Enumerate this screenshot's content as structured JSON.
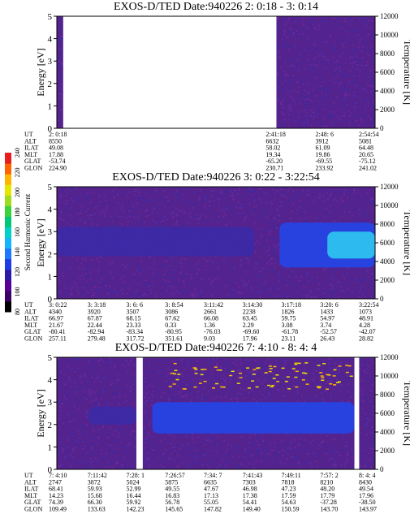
{
  "colorbar": {
    "label": "Second Harmonic Current",
    "ticks": [
      "80",
      "100",
      "120",
      "140",
      "160",
      "180",
      "200",
      "220",
      "240"
    ],
    "colors": [
      "#000000",
      "#3c0064",
      "#5a0096",
      "#2a1aa8",
      "#1e3ce6",
      "#1e78ff",
      "#14b4ff",
      "#00d2c8",
      "#00c878",
      "#3cd23c",
      "#a0dc1e",
      "#e6e600",
      "#ffb400",
      "#ff6400",
      "#e61e1e"
    ]
  },
  "colors": {
    "background_purple": "#54238e",
    "background_blue": "#3b2aa6",
    "band_blue": "#2346e8",
    "bright_cyan": "#2ec8f0",
    "gap_white": "#ffffff"
  },
  "chart_data": [
    {
      "type": "heatmap",
      "title": "EXOS-D/TED   Date:940226  2: 0:18 - 3: 0:14",
      "ylabel": "Energy [eV]",
      "ylabel_right": "Temperature [K]",
      "ylim": [
        0,
        5
      ],
      "ylim_right": [
        0,
        12000
      ],
      "yticks": [
        "0",
        "1",
        "2",
        "3",
        "4",
        "5"
      ],
      "yticks_right": [
        "0",
        "2000",
        "4000",
        "6000",
        "8000",
        "10000",
        "12000"
      ],
      "data_segments": [
        {
          "from_frac": 0.0,
          "to_frac": 0.02,
          "level": "low"
        },
        {
          "from_frac": 0.69,
          "to_frac": 1.0,
          "level": "low"
        }
      ],
      "features": [],
      "table": {
        "row_labels": [
          "UT",
          "ALT",
          "ILAT",
          "MLT",
          "GLAT",
          "GLON"
        ],
        "columns": [
          {
            "values": [
              "2: 0:18",
              "8550",
              "49.08",
              "17.88",
              "-53.74",
              "224.90"
            ]
          },
          {
            "values": [
              "2:41:18",
              "6632",
              "58.02",
              "19.34",
              "-65.20",
              "230.71"
            ]
          },
          {
            "values": [
              "2:48: 6",
              "3912",
              "61.09",
              "19.86",
              "-69.55",
              "233.92"
            ]
          },
          {
            "values": [
              "2:54:54",
              "5081",
              "64.48",
              "20.65",
              "-75.12",
              "241.02"
            ]
          }
        ]
      }
    },
    {
      "type": "heatmap",
      "title": "EXOS-D/TED   Date:940226  3: 0:22 - 3:22:54",
      "ylabel": "Energy [eV]",
      "ylabel_right": "Temperature [K]",
      "ylim": [
        0,
        5
      ],
      "ylim_right": [
        0,
        12000
      ],
      "yticks": [
        "0",
        "1",
        "2",
        "3",
        "4",
        "5"
      ],
      "yticks_right": [
        "0",
        "2000",
        "4000",
        "6000",
        "8000",
        "10000",
        "12000"
      ],
      "data_segments": [
        {
          "from_frac": 0.0,
          "to_frac": 1.0,
          "level": "low"
        }
      ],
      "features": [
        {
          "kind": "band",
          "from_frac": 0.0,
          "to_frac": 0.62,
          "e_from": 1.9,
          "e_to": 3.2,
          "level": "mid"
        },
        {
          "kind": "patch",
          "from_frac": 0.7,
          "to_frac": 1.0,
          "e_from": 1.4,
          "e_to": 3.4,
          "level": "high"
        },
        {
          "kind": "patch",
          "from_frac": 0.85,
          "to_frac": 1.0,
          "e_from": 1.8,
          "e_to": 3.0,
          "level": "bright"
        }
      ],
      "table": {
        "row_labels": [
          "UT",
          "ALT",
          "ILAT",
          "MLT",
          "GLAT",
          "GLON"
        ],
        "columns": [
          {
            "values": [
              "3: 0:22",
              "4340",
              "66.97",
              "21.67",
              "-80.41",
              "257.11"
            ]
          },
          {
            "values": [
              "3: 3:18",
              "3920",
              "67.87",
              "22.44",
              "-82.94",
              "279.48"
            ]
          },
          {
            "values": [
              "3: 6: 6",
              "3507",
              "68.15",
              "23.33",
              "-83.34",
              "317.72"
            ]
          },
          {
            "values": [
              "3: 8:54",
              "3086",
              "67.62",
              "0.33",
              "-80.95",
              "351.61"
            ]
          },
          {
            "values": [
              "3:11:42",
              "2661",
              "66.08",
              "1.36",
              "-76.03",
              "9.03"
            ]
          },
          {
            "values": [
              "3:14:30",
              "2238",
              "63.45",
              "2.29",
              "-69.60",
              "17.96"
            ]
          },
          {
            "values": [
              "3:17:18",
              "1826",
              "59.75",
              "3.08",
              "-61.78",
              "23.11"
            ]
          },
          {
            "values": [
              "3:20: 6",
              "1433",
              "54.97",
              "3.74",
              "-52.57",
              "26.43"
            ]
          },
          {
            "values": [
              "3:22:54",
              "1073",
              "48.91",
              "4.28",
              "-42.07",
              "28.82"
            ]
          }
        ]
      }
    },
    {
      "type": "heatmap",
      "title": "EXOS-D/TED   Date:940226  7: 4:10 - 8: 4: 4",
      "ylabel": "Energy [eV]",
      "ylabel_right": "Temperature [K]",
      "ylim": [
        0,
        5
      ],
      "ylim_right": [
        0,
        12000
      ],
      "yticks": [
        "0",
        "1",
        "2",
        "3",
        "4",
        "5"
      ],
      "yticks_right": [
        "0",
        "2000",
        "4000",
        "6000",
        "8000",
        "10000",
        "12000"
      ],
      "data_segments": [
        {
          "from_frac": 0.0,
          "to_frac": 0.25,
          "level": "low"
        },
        {
          "from_frac": 0.27,
          "to_frac": 0.935,
          "level": "low"
        },
        {
          "from_frac": 0.95,
          "to_frac": 1.0,
          "level": "low"
        }
      ],
      "features": [
        {
          "kind": "band",
          "from_frac": 0.3,
          "to_frac": 0.935,
          "e_from": 1.6,
          "e_to": 3.0,
          "level": "high"
        },
        {
          "kind": "band",
          "from_frac": 0.1,
          "to_frac": 0.25,
          "e_from": 2.0,
          "e_to": 2.8,
          "level": "mid"
        },
        {
          "kind": "speckle",
          "from_frac": 0.35,
          "to_frac": 0.93,
          "e_from": 3.6,
          "e_to": 4.8,
          "level": "warm"
        }
      ],
      "table": {
        "row_labels": [
          "UT",
          "ALT",
          "ILAT",
          "MLT",
          "GLAT",
          "GLON"
        ],
        "columns": [
          {
            "values": [
              "7: 4:10",
              "2747",
              "68.41",
              "14.23",
              "74.39",
              "109.49"
            ]
          },
          {
            "values": [
              "7:11:42",
              "3872",
              "59.93",
              "15.68",
              "66.30",
              "133.63"
            ]
          },
          {
            "values": [
              "7:28: 1",
              "5024",
              "52.99",
              "16.44",
              "59.92",
              "142.23"
            ]
          },
          {
            "values": [
              "7:26:57",
              "5875",
              "49.55",
              "16.83",
              "56.78",
              "145.65"
            ]
          },
          {
            "values": [
              "7:34: 7",
              "6635",
              "47.67",
              "17.13",
              "55.05",
              "147.82"
            ]
          },
          {
            "values": [
              "7:41:43",
              "7303",
              "46.98",
              "17.38",
              "54.41",
              "149.40"
            ]
          },
          {
            "values": [
              "7:49:11",
              "7818",
              "47.23",
              "17.59",
              "54.63",
              "150.59"
            ]
          },
          {
            "values": [
              "7:57: 2",
              "8210",
              "48.20",
              "17.79",
              "-37.28",
              "143.70"
            ]
          },
          {
            "values": [
              "8: 4: 4",
              "8430",
              "49.54",
              "17.96",
              "-38.50",
              "143.97"
            ]
          }
        ]
      }
    }
  ]
}
